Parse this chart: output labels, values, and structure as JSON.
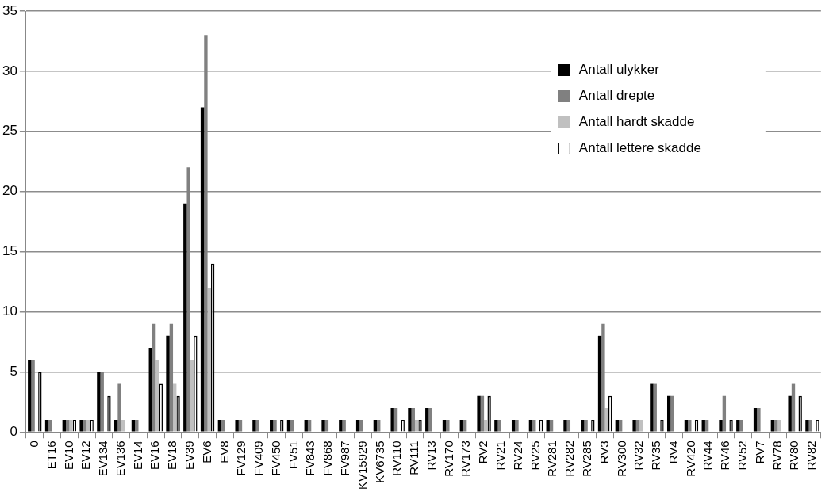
{
  "chart_data": {
    "type": "bar",
    "categories": [
      "0",
      "ET16",
      "EV10",
      "EV12",
      "EV134",
      "EV136",
      "EV14",
      "EV16",
      "EV18",
      "EV39",
      "EV6",
      "EV8",
      "FV129",
      "FV409",
      "FV450",
      "FV51",
      "FV843",
      "FV868",
      "FV987",
      "KV15929",
      "KV6735",
      "RV110",
      "RV111",
      "RV13",
      "RV170",
      "RV173",
      "RV2",
      "RV21",
      "RV24",
      "RV25",
      "RV281",
      "RV282",
      "RV285",
      "RV3",
      "RV300",
      "RV32",
      "RV35",
      "RV4",
      "RV420",
      "RV44",
      "RV46",
      "RV52",
      "RV7",
      "RV78",
      "RV80",
      "RV82"
    ],
    "series": [
      {
        "name": "Antall ulykker",
        "color": "#000000",
        "values": [
          6,
          1,
          1,
          1,
          5,
          1,
          1,
          7,
          8,
          19,
          27,
          1,
          1,
          1,
          1,
          1,
          1,
          1,
          1,
          1,
          1,
          2,
          2,
          2,
          1,
          1,
          3,
          1,
          1,
          1,
          1,
          1,
          1,
          8,
          1,
          1,
          4,
          3,
          1,
          1,
          1,
          1,
          2,
          1,
          3,
          1
        ]
      },
      {
        "name": "Antall drepte",
        "color": "#808080",
        "values": [
          6,
          1,
          1,
          1,
          5,
          4,
          1,
          9,
          9,
          22,
          33,
          1,
          1,
          1,
          1,
          1,
          1,
          1,
          1,
          1,
          1,
          2,
          2,
          2,
          1,
          1,
          3,
          1,
          1,
          1,
          1,
          1,
          1,
          9,
          1,
          1,
          4,
          3,
          1,
          1,
          3,
          1,
          2,
          1,
          4,
          1
        ]
      },
      {
        "name": "Antall hardt skadde",
        "color": "#c0c0c0",
        "values": [
          0,
          0,
          1,
          1,
          0,
          1,
          0,
          6,
          4,
          6,
          12,
          0,
          0,
          0,
          0,
          0,
          0,
          0,
          0,
          0,
          0,
          0,
          1,
          0,
          0,
          0,
          1,
          0,
          0,
          0,
          0,
          0,
          0,
          2,
          0,
          1,
          0,
          0,
          0,
          0,
          0,
          0,
          0,
          1,
          0,
          0
        ]
      },
      {
        "name": "Antall lettere skadde",
        "color": "#ffffff",
        "values": [
          5,
          0,
          1,
          1,
          3,
          0,
          0,
          4,
          3,
          8,
          14,
          0,
          0,
          0,
          1,
          0,
          0,
          0,
          0,
          0,
          0,
          1,
          1,
          0,
          0,
          0,
          3,
          0,
          0,
          1,
          0,
          0,
          1,
          3,
          0,
          0,
          1,
          0,
          1,
          0,
          1,
          0,
          0,
          0,
          3,
          1
        ]
      }
    ],
    "ylim": [
      0,
      35
    ],
    "yticks": [
      0,
      5,
      10,
      15,
      20,
      25,
      30,
      35
    ],
    "grid": "y",
    "legend": "top right"
  }
}
